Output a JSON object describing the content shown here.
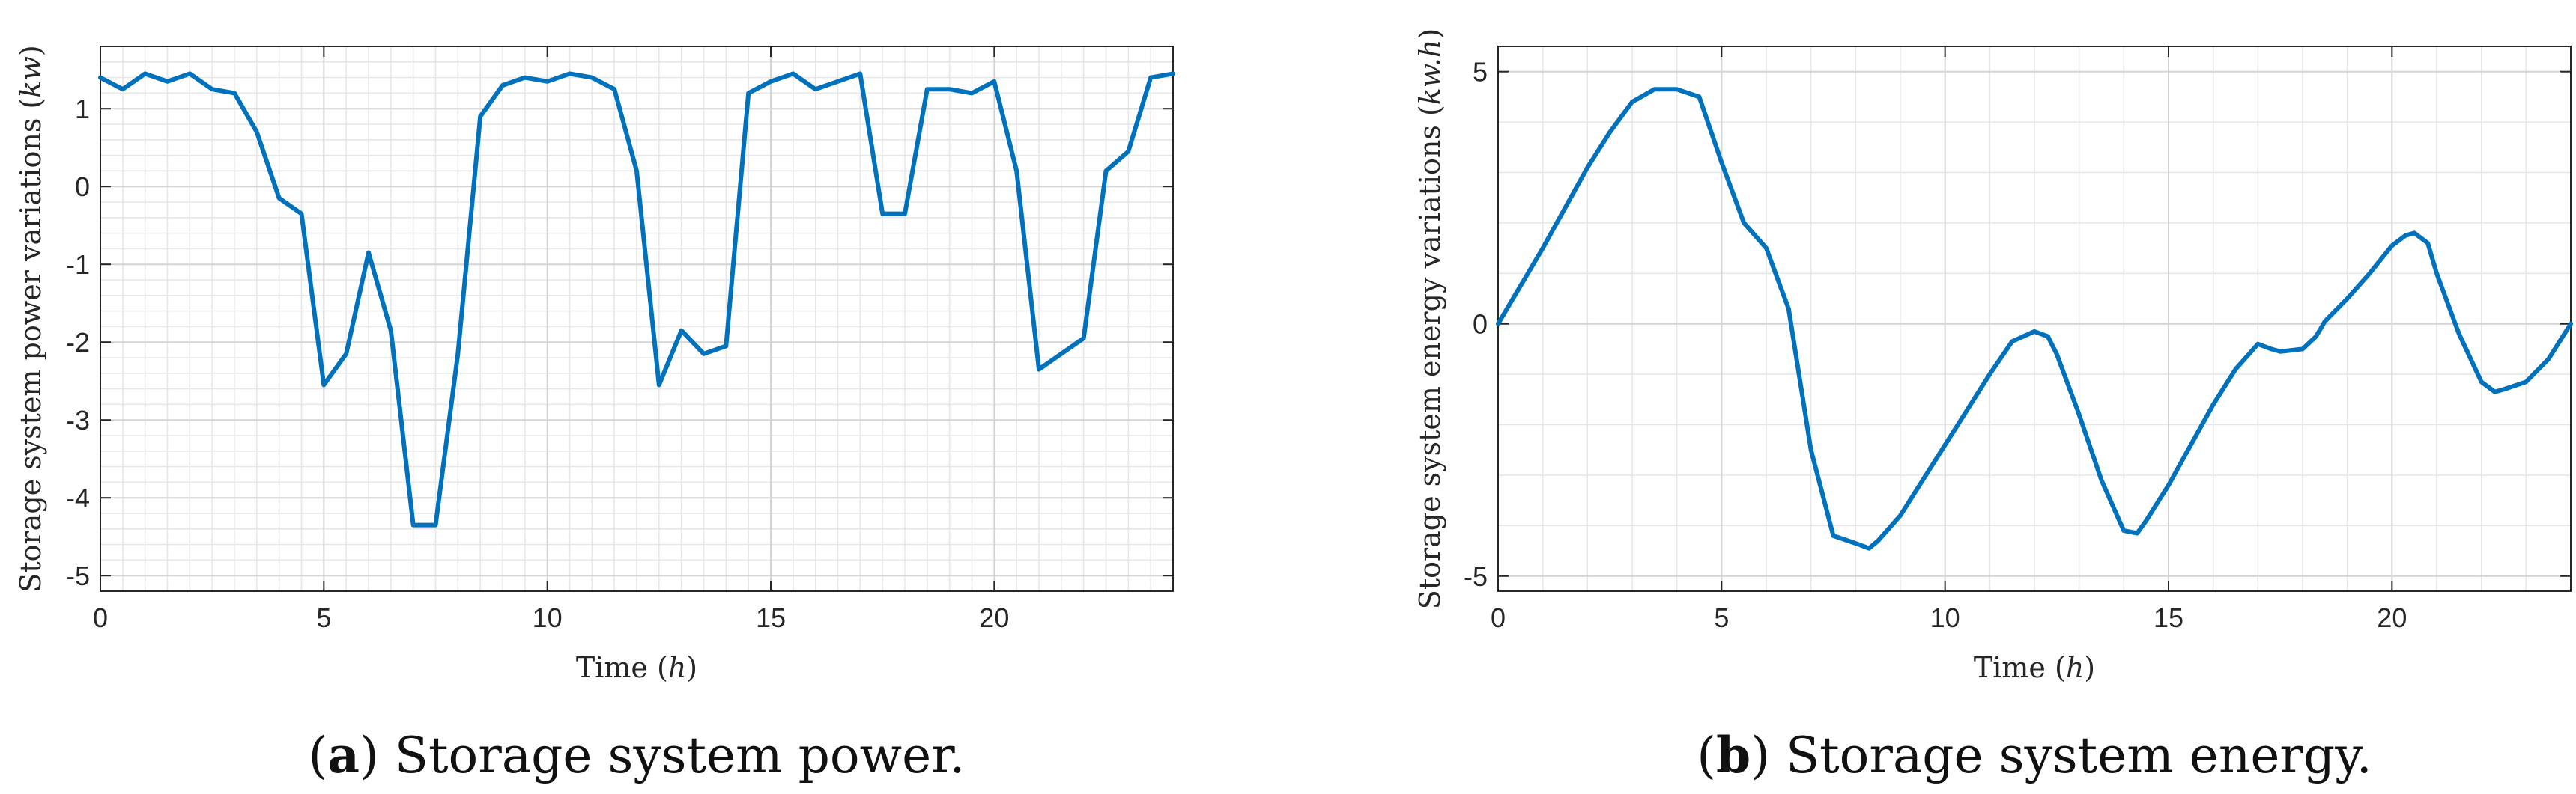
{
  "colors": {
    "series": "#0072BD"
  },
  "chart_data": [
    {
      "id": "a",
      "type": "line",
      "caption_label": "a",
      "caption_text": "Storage system power.",
      "xlabel": {
        "text": "Time",
        "unit": "h"
      },
      "ylabel": {
        "text": "Storage system power variations",
        "unit": "kw"
      },
      "xlim": [
        0,
        24
      ],
      "ylim": [
        -5.2,
        1.8
      ],
      "xticks": [
        0,
        5,
        10,
        15,
        20
      ],
      "xtick_labels": [
        "0",
        "5",
        "10",
        "15",
        "20"
      ],
      "yticks": [
        1,
        0,
        -1,
        -2,
        -3,
        -4,
        -5
      ],
      "ytick_labels": [
        "1",
        "0",
        "-1",
        "-2",
        "-3",
        "-4",
        "-5"
      ],
      "minor_x_step": 0.5,
      "minor_y_step": 0.2,
      "grid": true,
      "series": [
        {
          "x": [
            0,
            0.5,
            1,
            1.5,
            2,
            2.5,
            3,
            3.5,
            4,
            4.5,
            5,
            5.5,
            6,
            6.5,
            7,
            7.5,
            8,
            8.5,
            9,
            9.5,
            10,
            10.5,
            11,
            11.5,
            12,
            12.5,
            13,
            13.5,
            14,
            14.5,
            15,
            15.5,
            16,
            16.5,
            17,
            17.5,
            18,
            18.5,
            19,
            19.5,
            20,
            20.5,
            21,
            21.5,
            22,
            22.5,
            23,
            23.5,
            24
          ],
          "values": [
            1.4,
            1.25,
            1.45,
            1.35,
            1.45,
            1.25,
            1.2,
            0.7,
            -0.15,
            -0.35,
            -2.55,
            -2.15,
            -0.85,
            -1.85,
            -4.35,
            -4.35,
            -2.15,
            0.9,
            1.3,
            1.4,
            1.35,
            1.45,
            1.4,
            1.25,
            0.2,
            -2.55,
            -1.85,
            -2.15,
            -2.05,
            1.2,
            1.35,
            1.45,
            1.25,
            1.35,
            1.45,
            -0.35,
            -0.35,
            1.25,
            1.25,
            1.2,
            1.35,
            0.2,
            -2.35,
            -2.15,
            -1.95,
            0.2,
            0.45,
            1.4,
            1.45
          ]
        }
      ]
    },
    {
      "id": "b",
      "type": "line",
      "caption_label": "b",
      "caption_text": "Storage system energy.",
      "xlabel": {
        "text": "Time",
        "unit": "h"
      },
      "ylabel": {
        "text": "Storage system energy variations",
        "unit": "kw.h"
      },
      "xlim": [
        0,
        24
      ],
      "ylim": [
        -5.3,
        5.5
      ],
      "xticks": [
        0,
        5,
        10,
        15,
        20
      ],
      "xtick_labels": [
        "0",
        "5",
        "10",
        "15",
        "20"
      ],
      "yticks": [
        5,
        0,
        -5
      ],
      "ytick_labels": [
        "5",
        "0",
        "-5"
      ],
      "minor_x_step": 1,
      "minor_y_step": 1,
      "grid": true,
      "series": [
        {
          "x": [
            0,
            0.5,
            1,
            1.5,
            2,
            2.5,
            3,
            3.5,
            4,
            4.5,
            5,
            5.5,
            6,
            6.5,
            7,
            7.5,
            8,
            8.3,
            8.5,
            9,
            9.5,
            10,
            10.5,
            11,
            11.5,
            12,
            12.3,
            12.5,
            13,
            13.5,
            14,
            14.3,
            14.5,
            15,
            15.5,
            16,
            16.5,
            17,
            17.3,
            17.5,
            18,
            18.3,
            18.5,
            19,
            19.5,
            20,
            20.3,
            20.5,
            20.8,
            21,
            21.5,
            22,
            22.3,
            22.5,
            23,
            23.5,
            24
          ],
          "values": [
            0,
            0.75,
            1.5,
            2.3,
            3.1,
            3.8,
            4.4,
            4.65,
            4.65,
            4.5,
            3.2,
            2.0,
            1.5,
            0.3,
            -2.5,
            -4.2,
            -4.35,
            -4.45,
            -4.3,
            -3.8,
            -3.1,
            -2.4,
            -1.7,
            -1.0,
            -0.35,
            -0.15,
            -0.25,
            -0.6,
            -1.8,
            -3.1,
            -4.1,
            -4.15,
            -3.9,
            -3.2,
            -2.4,
            -1.6,
            -0.9,
            -0.4,
            -0.5,
            -0.55,
            -0.5,
            -0.25,
            0.05,
            0.5,
            1.0,
            1.55,
            1.75,
            1.8,
            1.6,
            1.0,
            -0.2,
            -1.15,
            -1.35,
            -1.3,
            -1.15,
            -0.7,
            0
          ]
        }
      ]
    }
  ]
}
